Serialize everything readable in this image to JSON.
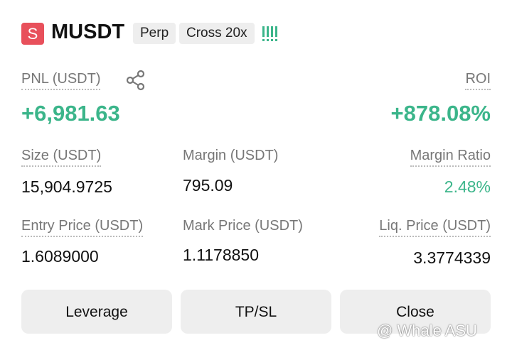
{
  "header": {
    "badge": "S",
    "symbol": "MUSDT",
    "tags": [
      "Perp",
      "Cross 20x"
    ]
  },
  "pnl": {
    "label": "PNL (USDT)",
    "value": "+6,981.63"
  },
  "roi": {
    "label": "ROI",
    "value": "+878.08%"
  },
  "fields": [
    {
      "label": "Size (USDT)",
      "value": "15,904.9725"
    },
    {
      "label": "Margin (USDT)",
      "value": "795.09"
    },
    {
      "label": "Margin Ratio",
      "value": "2.48%"
    },
    {
      "label": "Entry Price (USDT)",
      "value": "1.6089000"
    },
    {
      "label": "Mark Price (USDT)",
      "value": "1.1178850"
    },
    {
      "label": "Liq. Price (USDT)",
      "value": "3.3774339"
    }
  ],
  "buttons": [
    "Leverage",
    "TP/SL",
    "Close"
  ],
  "watermark": "@ Whale ASU"
}
